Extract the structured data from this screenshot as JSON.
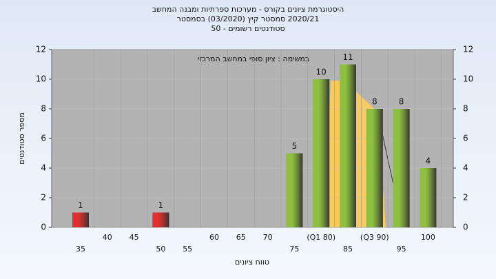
{
  "chart_data": {
    "type": "bar",
    "title": [
      "היסטוגרמת ציונים בקורס - מערכות ספרתיות ומבנה המחשב",
      "2020/21 סמסטר קיץ (03/2020) בסמסטר",
      "סטודנטים רשומים - 50"
    ],
    "annotation": "במשימה : ציון סופי במחשב המרכזי",
    "x_label": "טווח ציונים",
    "y_label": "מספר סטודנטים",
    "categories": [
      "35",
      "40",
      "45",
      "50",
      "55",
      "60",
      "65",
      "70",
      "75",
      "(Q1 80)",
      "85",
      "(Q3 90)",
      "95",
      "100"
    ],
    "values": [
      1,
      0,
      0,
      1,
      0,
      0,
      0,
      0,
      5,
      10,
      11,
      8,
      8,
      4
    ],
    "colors": [
      "#e03030",
      "#8fbf3f",
      "#8fbf3f",
      "#e03030",
      "#8fbf3f",
      "#8fbf3f",
      "#8fbf3f",
      "#8fbf3f",
      "#8fbf3f",
      "#8fbf3f",
      "#8fbf3f",
      "#8fbf3f",
      "#8fbf3f",
      "#8fbf3f"
    ],
    "ylim": [
      0,
      12
    ],
    "yticks": [
      0,
      2,
      4,
      6,
      8,
      10,
      12
    ],
    "y2lim": [
      0,
      12
    ],
    "y2ticks": [
      0,
      2,
      4,
      6,
      8,
      10,
      12
    ]
  }
}
